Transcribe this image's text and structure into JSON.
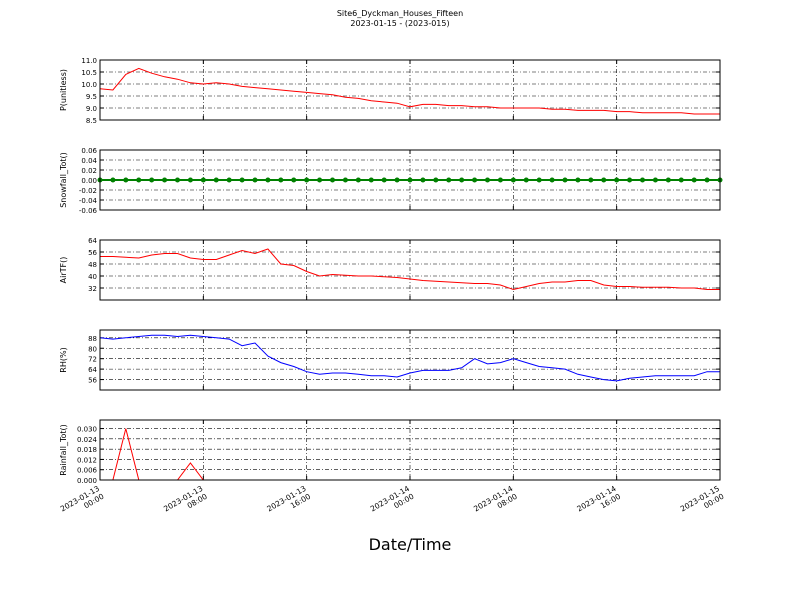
{
  "title": "Site6_Dyckman_Houses_Fifteen",
  "subtitle": "2023-01-15 - (2023-015)",
  "xlabel": "Date/Time",
  "xlim": [
    "2023-01-13 00:00",
    "2023-01-15 00:00"
  ],
  "xticks": [
    "2023-01-13 00:00",
    "2023-01-13 08:00",
    "2023-01-13 16:00",
    "2023-01-14 00:00",
    "2023-01-14 08:00",
    "2023-01-14 16:00",
    "2023-01-15 00:00"
  ],
  "grid": true,
  "chart_data": [
    {
      "type": "line",
      "ylabel": "P(unitless)",
      "color": "#ff0000",
      "ylim": [
        8.5,
        11.0
      ],
      "yticks": [
        8.5,
        {
          "value": 9,
          "label": "9.0"
        },
        9.5,
        {
          "value": 10,
          "label": "10.0"
        },
        10.5,
        {
          "value": 11,
          "label": "11.0"
        }
      ],
      "x": [
        "2023-01-13 00:00",
        "2023-01-13 01:00",
        "2023-01-13 02:00",
        "2023-01-13 03:00",
        "2023-01-13 04:00",
        "2023-01-13 05:00",
        "2023-01-13 06:00",
        "2023-01-13 07:00",
        "2023-01-13 08:00",
        "2023-01-13 09:00",
        "2023-01-13 10:00",
        "2023-01-13 11:00",
        "2023-01-13 12:00",
        "2023-01-13 13:00",
        "2023-01-13 14:00",
        "2023-01-13 15:00",
        "2023-01-13 16:00",
        "2023-01-13 17:00",
        "2023-01-13 18:00",
        "2023-01-13 19:00",
        "2023-01-13 20:00",
        "2023-01-13 21:00",
        "2023-01-13 22:00",
        "2023-01-13 23:00",
        "2023-01-14 00:00",
        "2023-01-14 01:00",
        "2023-01-14 02:00",
        "2023-01-14 03:00",
        "2023-01-14 04:00",
        "2023-01-14 05:00",
        "2023-01-14 06:00",
        "2023-01-14 07:00",
        "2023-01-14 08:00",
        "2023-01-14 09:00",
        "2023-01-14 10:00",
        "2023-01-14 11:00",
        "2023-01-14 12:00",
        "2023-01-14 13:00",
        "2023-01-14 14:00",
        "2023-01-14 15:00",
        "2023-01-14 16:00",
        "2023-01-14 17:00",
        "2023-01-14 18:00",
        "2023-01-14 19:00",
        "2023-01-14 20:00",
        "2023-01-14 21:00",
        "2023-01-14 22:00",
        "2023-01-14 23:00",
        "2023-01-15 00:00"
      ],
      "values": [
        9.8,
        9.75,
        10.4,
        10.65,
        10.45,
        10.3,
        10.2,
        10.05,
        10.0,
        10.05,
        10.0,
        9.9,
        9.85,
        9.8,
        9.75,
        9.7,
        9.65,
        9.6,
        9.55,
        9.45,
        9.4,
        9.3,
        9.25,
        9.2,
        9.05,
        9.15,
        9.15,
        9.1,
        9.1,
        9.05,
        9.05,
        9.0,
        9.0,
        9.0,
        9.0,
        8.95,
        8.95,
        8.9,
        8.9,
        8.9,
        8.85,
        8.85,
        8.8,
        8.8,
        8.8,
        8.8,
        8.75,
        8.75,
        8.75
      ]
    },
    {
      "type": "line",
      "ylabel": "Snowfall_Tot()",
      "color": "#008000",
      "marker": true,
      "ylim": [
        -0.06,
        0.06
      ],
      "yticks": [
        -0.06,
        -0.04,
        -0.02,
        {
          "value": 0,
          "label": "0.00"
        },
        0.02,
        0.04,
        0.06
      ],
      "x": [
        "2023-01-13 00:00",
        "2023-01-13 01:00",
        "2023-01-13 02:00",
        "2023-01-13 03:00",
        "2023-01-13 04:00",
        "2023-01-13 05:00",
        "2023-01-13 06:00",
        "2023-01-13 07:00",
        "2023-01-13 08:00",
        "2023-01-13 09:00",
        "2023-01-13 10:00",
        "2023-01-13 11:00",
        "2023-01-13 12:00",
        "2023-01-13 13:00",
        "2023-01-13 14:00",
        "2023-01-13 15:00",
        "2023-01-13 16:00",
        "2023-01-13 17:00",
        "2023-01-13 18:00",
        "2023-01-13 19:00",
        "2023-01-13 20:00",
        "2023-01-13 21:00",
        "2023-01-13 22:00",
        "2023-01-13 23:00",
        "2023-01-14 00:00",
        "2023-01-14 01:00",
        "2023-01-14 02:00",
        "2023-01-14 03:00",
        "2023-01-14 04:00",
        "2023-01-14 05:00",
        "2023-01-14 06:00",
        "2023-01-14 07:00",
        "2023-01-14 08:00",
        "2023-01-14 09:00",
        "2023-01-14 10:00",
        "2023-01-14 11:00",
        "2023-01-14 12:00",
        "2023-01-14 13:00",
        "2023-01-14 14:00",
        "2023-01-14 15:00",
        "2023-01-14 16:00",
        "2023-01-14 17:00",
        "2023-01-14 18:00",
        "2023-01-14 19:00",
        "2023-01-14 20:00",
        "2023-01-14 21:00",
        "2023-01-14 22:00",
        "2023-01-14 23:00",
        "2023-01-15 00:00"
      ],
      "values": [
        0,
        0,
        0,
        0,
        0,
        0,
        0,
        0,
        0,
        0,
        0,
        0,
        0,
        0,
        0,
        0,
        0,
        0,
        0,
        0,
        0,
        0,
        0,
        0,
        0,
        0,
        0,
        0,
        0,
        0,
        0,
        0,
        0,
        0,
        0,
        0,
        0,
        0,
        0,
        0,
        0,
        0,
        0,
        0,
        0,
        0,
        0,
        0,
        0
      ]
    },
    {
      "type": "line",
      "ylabel": "AirTF()",
      "color": "#ff0000",
      "ylim": [
        24,
        64
      ],
      "yticks": [
        32,
        40,
        48,
        56,
        64
      ],
      "x": [
        "2023-01-13 00:00",
        "2023-01-13 01:00",
        "2023-01-13 02:00",
        "2023-01-13 03:00",
        "2023-01-13 04:00",
        "2023-01-13 05:00",
        "2023-01-13 06:00",
        "2023-01-13 07:00",
        "2023-01-13 08:00",
        "2023-01-13 09:00",
        "2023-01-13 10:00",
        "2023-01-13 11:00",
        "2023-01-13 12:00",
        "2023-01-13 13:00",
        "2023-01-13 14:00",
        "2023-01-13 15:00",
        "2023-01-13 16:00",
        "2023-01-13 17:00",
        "2023-01-13 18:00",
        "2023-01-13 19:00",
        "2023-01-13 20:00",
        "2023-01-13 21:00",
        "2023-01-13 22:00",
        "2023-01-13 23:00",
        "2023-01-14 00:00",
        "2023-01-14 01:00",
        "2023-01-14 02:00",
        "2023-01-14 03:00",
        "2023-01-14 04:00",
        "2023-01-14 05:00",
        "2023-01-14 06:00",
        "2023-01-14 07:00",
        "2023-01-14 08:00",
        "2023-01-14 09:00",
        "2023-01-14 10:00",
        "2023-01-14 11:00",
        "2023-01-14 12:00",
        "2023-01-14 13:00",
        "2023-01-14 14:00",
        "2023-01-14 15:00",
        "2023-01-14 16:00",
        "2023-01-14 17:00",
        "2023-01-14 18:00",
        "2023-01-14 19:00",
        "2023-01-14 20:00",
        "2023-01-14 21:00",
        "2023-01-14 22:00",
        "2023-01-14 23:00",
        "2023-01-15 00:00"
      ],
      "values": [
        53,
        53,
        52.5,
        52,
        54,
        55,
        55,
        52,
        51,
        51,
        54,
        57,
        55,
        58,
        48,
        47,
        43,
        40,
        41,
        40.5,
        40,
        40,
        39.5,
        39,
        38,
        37,
        36.5,
        36,
        35.5,
        35,
        35,
        34,
        31,
        33,
        35,
        36,
        36,
        37,
        37,
        34,
        33,
        33,
        32.5,
        32.5,
        32.5,
        32,
        32,
        31,
        31
      ]
    },
    {
      "type": "line",
      "ylabel": "RH(%)",
      "color": "#0000ff",
      "ylim": [
        48,
        94
      ],
      "yticks": [
        56,
        64,
        72,
        80,
        88
      ],
      "x": [
        "2023-01-13 00:00",
        "2023-01-13 01:00",
        "2023-01-13 02:00",
        "2023-01-13 03:00",
        "2023-01-13 04:00",
        "2023-01-13 05:00",
        "2023-01-13 06:00",
        "2023-01-13 07:00",
        "2023-01-13 08:00",
        "2023-01-13 09:00",
        "2023-01-13 10:00",
        "2023-01-13 11:00",
        "2023-01-13 12:00",
        "2023-01-13 13:00",
        "2023-01-13 14:00",
        "2023-01-13 15:00",
        "2023-01-13 16:00",
        "2023-01-13 17:00",
        "2023-01-13 18:00",
        "2023-01-13 19:00",
        "2023-01-13 20:00",
        "2023-01-13 21:00",
        "2023-01-13 22:00",
        "2023-01-13 23:00",
        "2023-01-14 00:00",
        "2023-01-14 01:00",
        "2023-01-14 02:00",
        "2023-01-14 03:00",
        "2023-01-14 04:00",
        "2023-01-14 05:00",
        "2023-01-14 06:00",
        "2023-01-14 07:00",
        "2023-01-14 08:00",
        "2023-01-14 09:00",
        "2023-01-14 10:00",
        "2023-01-14 11:00",
        "2023-01-14 12:00",
        "2023-01-14 13:00",
        "2023-01-14 14:00",
        "2023-01-14 15:00",
        "2023-01-14 16:00",
        "2023-01-14 17:00",
        "2023-01-14 18:00",
        "2023-01-14 19:00",
        "2023-01-14 20:00",
        "2023-01-14 21:00",
        "2023-01-14 22:00",
        "2023-01-14 23:00",
        "2023-01-15 00:00"
      ],
      "values": [
        88,
        87,
        88,
        89,
        90,
        90,
        89,
        90,
        89,
        88,
        87,
        82,
        84,
        74,
        69,
        66,
        62,
        60,
        61,
        61,
        60,
        59,
        59,
        58,
        61,
        63,
        63,
        63,
        65,
        72,
        68,
        69,
        72,
        69,
        66,
        65,
        64,
        60,
        58,
        56,
        55,
        57,
        58,
        59,
        59,
        59,
        59,
        62,
        62
      ]
    },
    {
      "type": "line",
      "ylabel": "Rainfall_Tot()",
      "color": "#ff0000",
      "ylim": [
        0,
        0.035
      ],
      "yticks": [
        {
          "value": 0,
          "label": "0.000"
        },
        0.006,
        0.012,
        0.018,
        0.024,
        {
          "value": 0.03,
          "label": "0.030"
        }
      ],
      "x": [
        "2023-01-13 00:00",
        "2023-01-13 01:00",
        "2023-01-13 02:00",
        "2023-01-13 03:00",
        "2023-01-13 04:00",
        "2023-01-13 05:00",
        "2023-01-13 06:00",
        "2023-01-13 07:00",
        "2023-01-13 08:00",
        "2023-01-13 09:00",
        "2023-01-13 10:00",
        "2023-01-13 11:00",
        "2023-01-13 12:00",
        "2023-01-13 13:00",
        "2023-01-13 14:00",
        "2023-01-13 15:00",
        "2023-01-13 16:00",
        "2023-01-13 17:00",
        "2023-01-13 18:00",
        "2023-01-13 19:00",
        "2023-01-13 20:00",
        "2023-01-13 21:00",
        "2023-01-13 22:00",
        "2023-01-13 23:00",
        "2023-01-14 00:00",
        "2023-01-14 01:00",
        "2023-01-14 02:00",
        "2023-01-14 03:00",
        "2023-01-14 04:00",
        "2023-01-14 05:00",
        "2023-01-14 06:00",
        "2023-01-14 07:00",
        "2023-01-14 08:00",
        "2023-01-14 09:00",
        "2023-01-14 10:00",
        "2023-01-14 11:00",
        "2023-01-14 12:00",
        "2023-01-14 13:00",
        "2023-01-14 14:00",
        "2023-01-14 15:00",
        "2023-01-14 16:00",
        "2023-01-14 17:00",
        "2023-01-14 18:00",
        "2023-01-14 19:00",
        "2023-01-14 20:00",
        "2023-01-14 21:00",
        "2023-01-14 22:00",
        "2023-01-14 23:00",
        "2023-01-15 00:00"
      ],
      "values": [
        0,
        0,
        0.03,
        0,
        0,
        0,
        0,
        0.01,
        0,
        0,
        0,
        0,
        0,
        0,
        0,
        0,
        0,
        0,
        0,
        0,
        0,
        0,
        0,
        0,
        0,
        0,
        0,
        0,
        0,
        0,
        0,
        0,
        0,
        0,
        0,
        0,
        0,
        0,
        0,
        0,
        0,
        0,
        0,
        0,
        0,
        0,
        0,
        0,
        0
      ]
    }
  ]
}
